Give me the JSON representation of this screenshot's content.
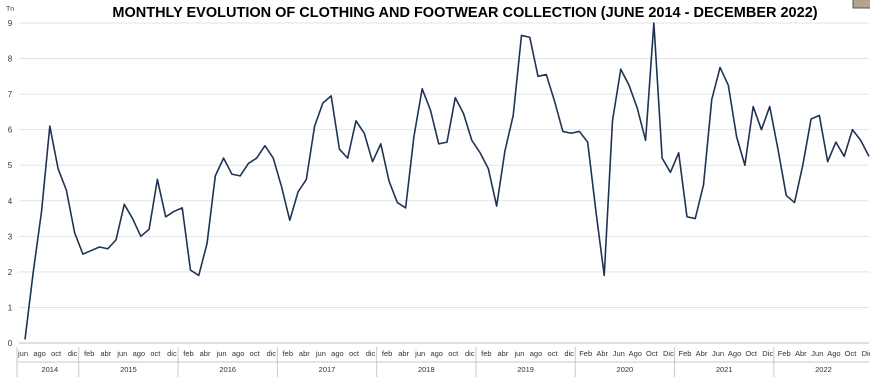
{
  "chart_data": {
    "type": "line",
    "title": "MONTHLY EVOLUTION OF CLOTHING AND FOOTWEAR COLLECTION (JUNE 2014 - DECEMBER 2022)",
    "unit_label": "Tn",
    "ylim": [
      0,
      9
    ],
    "yticks": [
      0,
      1,
      2,
      3,
      4,
      5,
      6,
      7,
      8,
      9
    ],
    "grid": true,
    "month_ticks": [
      "jun",
      "ago",
      "oct",
      "dic",
      "feb",
      "abr",
      "jun",
      "ago",
      "oct",
      "dic",
      "feb",
      "abr",
      "jun",
      "ago",
      "oct",
      "dic",
      "feb",
      "abr",
      "jun",
      "ago",
      "oct",
      "dic",
      "feb",
      "abr",
      "jun",
      "ago",
      "oct",
      "dic",
      "feb",
      "abr",
      "jun",
      "ago",
      "oct",
      "dic",
      "Feb",
      "Abr",
      "Jun",
      "Ago",
      "Oct",
      "Dic",
      "Feb",
      "Abr",
      "Jun",
      "Ago",
      "Oct",
      "Dic",
      "Feb",
      "Abr",
      "Jun",
      "Ago",
      "Oct",
      "Dic"
    ],
    "years": [
      {
        "label": "2014",
        "months": 7
      },
      {
        "label": "2015",
        "months": 12
      },
      {
        "label": "2016",
        "months": 12
      },
      {
        "label": "2017",
        "months": 12
      },
      {
        "label": "2018",
        "months": 12
      },
      {
        "label": "2019",
        "months": 12
      },
      {
        "label": "2020",
        "months": 12
      },
      {
        "label": "2021",
        "months": 12
      },
      {
        "label": "2022",
        "months": 12
      }
    ],
    "series": [
      {
        "color": "#1f3454",
        "values": [
          0.1,
          2.0,
          3.7,
          6.1,
          4.9,
          4.3,
          3.1,
          2.5,
          2.6,
          2.7,
          2.65,
          2.9,
          3.9,
          3.5,
          3.0,
          3.2,
          4.6,
          3.55,
          3.7,
          3.8,
          2.05,
          1.9,
          2.8,
          4.7,
          5.2,
          4.75,
          4.7,
          5.05,
          5.2,
          5.55,
          5.2,
          4.4,
          3.45,
          4.25,
          4.6,
          6.1,
          6.75,
          6.95,
          5.45,
          5.2,
          6.25,
          5.9,
          5.1,
          5.6,
          4.55,
          3.95,
          3.8,
          5.8,
          7.15,
          6.55,
          5.6,
          5.65,
          6.9,
          6.45,
          5.7,
          5.35,
          4.9,
          3.85,
          5.4,
          6.4,
          8.65,
          8.6,
          7.5,
          7.55,
          6.8,
          5.95,
          5.9,
          5.95,
          5.65,
          3.7,
          1.9,
          6.25,
          7.7,
          7.25,
          6.6,
          5.7,
          9.0,
          5.2,
          4.8,
          5.35,
          3.55,
          3.5,
          4.45,
          6.85,
          7.75,
          7.25,
          5.8,
          5.0,
          6.65,
          6.0,
          6.65,
          5.45,
          4.15,
          3.95,
          5.0,
          6.3,
          6.4,
          5.1,
          5.65,
          5.25,
          6.0,
          5.7,
          5.25
        ]
      }
    ]
  }
}
